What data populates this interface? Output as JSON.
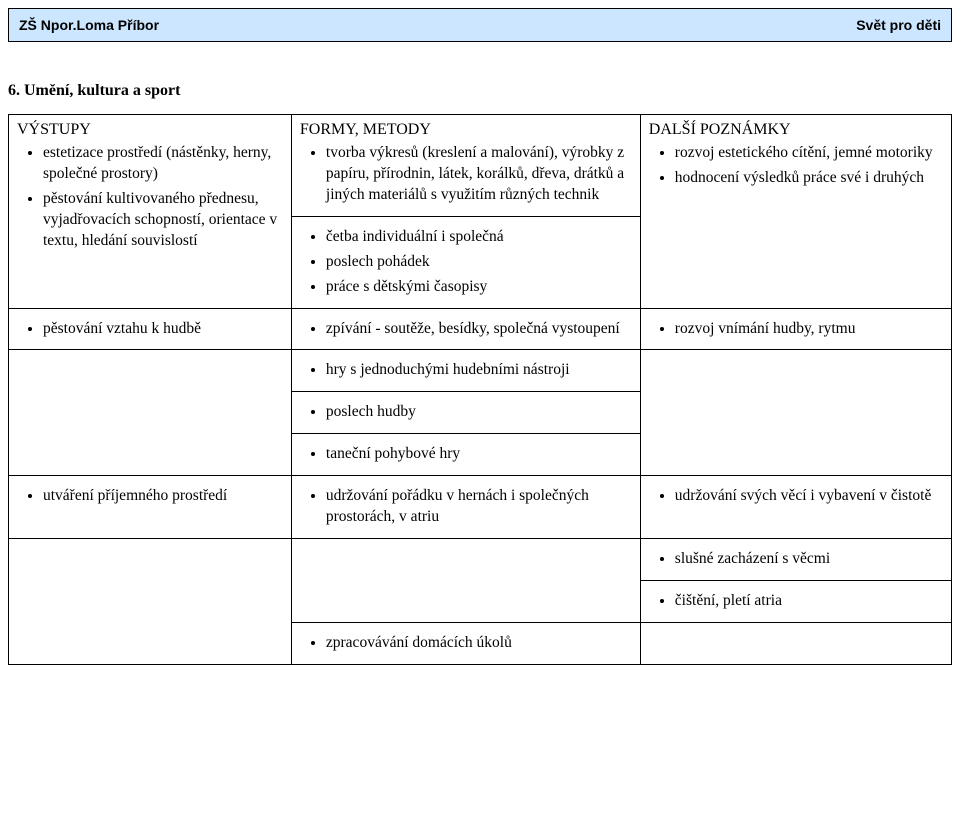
{
  "header": {
    "left": "ZŠ Npor.Loma Příbor",
    "right": "Svět pro děti"
  },
  "section_title": "6. Umění, kultura a sport",
  "columns": {
    "c1": "VÝSTUPY",
    "c2": "FORMY, METODY",
    "c3": "DALŠÍ POZNÁMKY"
  },
  "r1": {
    "c1a": "estetizace prostředí (nástěnky, herny, společné prostory)",
    "c1b": "pěstování kultivovaného přednesu, vyjadřovacích schopností, orientace v textu, hledání souvislostí",
    "c2a": "tvorba výkresů (kreslení a malování), výrobky z papíru, přírodnin, látek, korálků, dřeva, drátků a jiných materiálů s využitím různých technik",
    "c2b1": "četba individuální i společná",
    "c2b2": "poslech pohádek",
    "c2b3": "práce s dětskými časopisy",
    "c3a": "rozvoj estetického cítění, jemné motoriky",
    "c3b": "hodnocení výsledků práce své i druhých"
  },
  "r2": {
    "c1a": "pěstování vztahu k hudbě",
    "c1b": "utváření příjemného prostředí",
    "c2_1": "zpívání - soutěže, besídky, společná vystoupení",
    "c2_2": "hry s jednoduchými hudebními nástroji",
    "c2_3": "poslech hudby",
    "c2_4": "taneční pohybové hry",
    "c2_5": "udržování pořádku v hernách i společných prostorách, v atriu",
    "c2_6": "zpracovávání domácích úkolů",
    "c3_1": "rozvoj vnímání hudby, rytmu",
    "c3_2": "udržování svých věcí i vybavení v čistotě",
    "c3_3": "slušné zacházení s věcmi",
    "c3_4": "čištění, pletí atria"
  }
}
